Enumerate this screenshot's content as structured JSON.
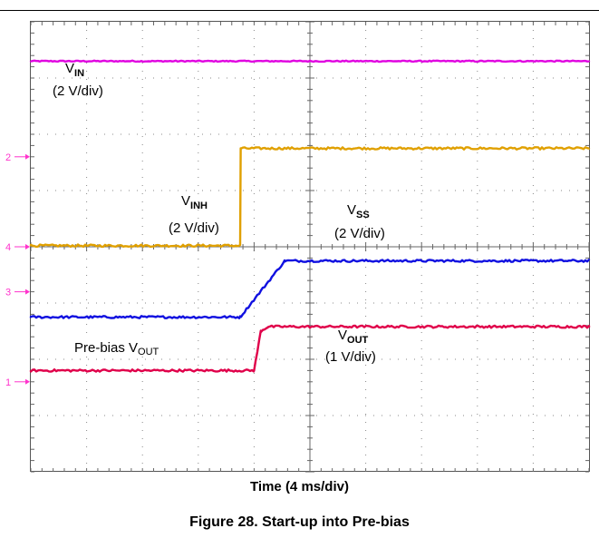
{
  "chart_data": {
    "type": "line",
    "xlabel": "Time (4 ms/div)",
    "caption": "Figure 28. Start-up into Pre-bias",
    "xlim": [
      0,
      10
    ],
    "ylim": [
      -4,
      4
    ],
    "grid": true,
    "channel_markers": [
      {
        "text": "2",
        "color": "#ff33cc",
        "level_div": 1.6
      },
      {
        "text": "4",
        "color": "#ff33cc",
        "level_div": 0.0
      },
      {
        "text": "3",
        "color": "#ff33cc",
        "level_div": -0.8
      },
      {
        "text": "1",
        "color": "#ff33cc",
        "level_div": -2.4
      }
    ],
    "series": [
      {
        "key": "vin",
        "color": "#e000e0",
        "noise": 0.02,
        "label_main": "V",
        "label_sub": "IN",
        "label_scale": "(2 V/div)",
        "points": [
          [
            0,
            3.3
          ],
          [
            10,
            3.3
          ]
        ]
      },
      {
        "key": "vinh",
        "color": "#e0a000",
        "noise": 0.04,
        "label_main": "V",
        "label_sub": "INH",
        "label_scale": "(2 V/div)",
        "points": [
          [
            0,
            0.02
          ],
          [
            3.75,
            0.02
          ],
          [
            3.76,
            1.75
          ],
          [
            10,
            1.75
          ]
        ]
      },
      {
        "key": "vss",
        "color": "#1010e0",
        "noise": 0.04,
        "label_main": "V",
        "label_sub": "SS",
        "label_scale": "(2 V/div)",
        "points": [
          [
            0,
            -1.25
          ],
          [
            3.75,
            -1.25
          ],
          [
            4.55,
            -0.25
          ],
          [
            10,
            -0.25
          ]
        ]
      },
      {
        "key": "vout",
        "color": "#e0004a",
        "noise": 0.04,
        "label_main": "V",
        "label_sub": "OUT",
        "label_scale": "(1 V/div)",
        "points": [
          [
            0,
            -2.2
          ],
          [
            4.0,
            -2.2
          ],
          [
            4.12,
            -1.5
          ],
          [
            4.25,
            -1.42
          ],
          [
            10,
            -1.42
          ]
        ]
      }
    ],
    "annotation": {
      "text": "Pre-bias V",
      "sub": "OUT"
    }
  }
}
